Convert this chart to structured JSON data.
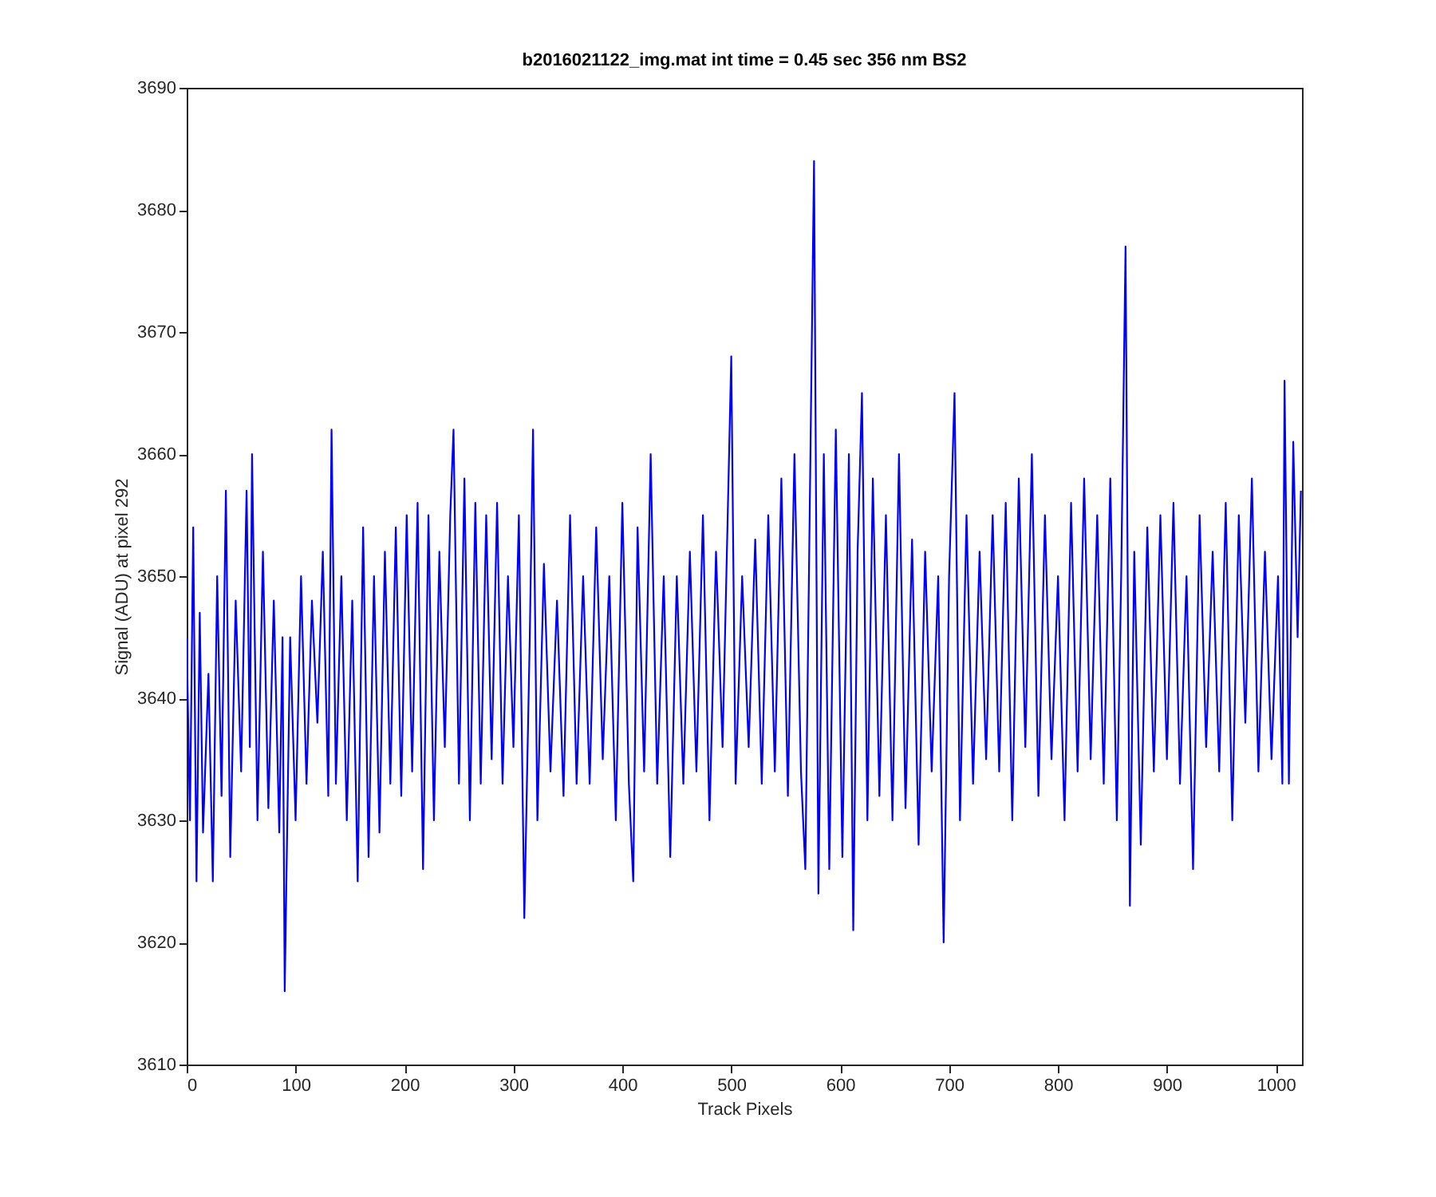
{
  "chart_data": {
    "type": "line",
    "title": "b2016021122_img.mat int time = 0.45 sec  356 nm BS2",
    "xlabel": "Track Pixels",
    "ylabel": "Signal (ADU) at pixel 292",
    "xlim": [
      0,
      1024
    ],
    "xticks": [
      0,
      100,
      200,
      300,
      400,
      500,
      600,
      700,
      800,
      900,
      1000
    ],
    "ylim": [
      3610,
      3690
    ],
    "yticks": [
      3610,
      3620,
      3630,
      3640,
      3650,
      3660,
      3670,
      3680,
      3690
    ],
    "grid": false,
    "marker": "none",
    "series": [
      {
        "color": "#0000ff",
        "x": [
          0,
          3,
          6,
          9,
          12,
          15,
          20,
          24,
          28,
          32,
          36,
          40,
          45,
          50,
          55,
          58,
          60,
          65,
          70,
          75,
          80,
          85,
          88,
          90,
          95,
          100,
          105,
          110,
          115,
          120,
          125,
          130,
          133,
          137,
          142,
          147,
          152,
          157,
          162,
          167,
          172,
          177,
          182,
          187,
          192,
          197,
          202,
          207,
          212,
          217,
          222,
          227,
          232,
          237,
          242,
          245,
          250,
          255,
          260,
          265,
          270,
          275,
          280,
          285,
          290,
          295,
          300,
          305,
          310,
          315,
          318,
          322,
          328,
          334,
          340,
          346,
          352,
          358,
          364,
          370,
          376,
          382,
          388,
          394,
          400,
          406,
          410,
          414,
          420,
          426,
          432,
          438,
          444,
          450,
          456,
          462,
          468,
          474,
          480,
          486,
          492,
          500,
          504,
          510,
          516,
          522,
          528,
          534,
          540,
          546,
          552,
          558,
          564,
          568,
          572,
          576,
          580,
          585,
          590,
          596,
          602,
          608,
          612,
          616,
          620,
          625,
          630,
          636,
          642,
          648,
          654,
          660,
          666,
          672,
          678,
          684,
          690,
          695,
          700,
          705,
          710,
          716,
          722,
          728,
          734,
          740,
          746,
          752,
          758,
          764,
          770,
          776,
          782,
          788,
          794,
          800,
          806,
          812,
          818,
          824,
          830,
          836,
          842,
          848,
          854,
          858,
          862,
          866,
          870,
          876,
          882,
          888,
          894,
          900,
          906,
          912,
          918,
          924,
          930,
          936,
          942,
          948,
          954,
          960,
          966,
          972,
          978,
          984,
          990,
          996,
          1002,
          1006,
          1008,
          1012,
          1016,
          1020,
          1023
        ],
        "values": [
          3645,
          3630,
          3654,
          3625,
          3647,
          3629,
          3642,
          3625,
          3650,
          3632,
          3657,
          3627,
          3648,
          3634,
          3657,
          3636,
          3660,
          3630,
          3652,
          3631,
          3648,
          3629,
          3645,
          3616,
          3645,
          3630,
          3650,
          3633,
          3648,
          3638,
          3652,
          3632,
          3662,
          3633,
          3650,
          3630,
          3648,
          3625,
          3654,
          3627,
          3650,
          3629,
          3652,
          3633,
          3654,
          3632,
          3655,
          3634,
          3656,
          3626,
          3655,
          3630,
          3652,
          3636,
          3655,
          3662,
          3633,
          3658,
          3630,
          3656,
          3633,
          3655,
          3635,
          3656,
          3633,
          3650,
          3636,
          3655,
          3622,
          3645,
          3662,
          3630,
          3651,
          3634,
          3648,
          3632,
          3655,
          3633,
          3650,
          3633,
          3654,
          3635,
          3650,
          3630,
          3656,
          3633,
          3625,
          3654,
          3634,
          3660,
          3633,
          3650,
          3627,
          3650,
          3633,
          3652,
          3634,
          3655,
          3630,
          3652,
          3636,
          3668,
          3633,
          3650,
          3636,
          3653,
          3633,
          3655,
          3634,
          3658,
          3632,
          3660,
          3634,
          3626,
          3655,
          3684,
          3624,
          3660,
          3626,
          3662,
          3627,
          3660,
          3621,
          3652,
          3665,
          3630,
          3658,
          3632,
          3655,
          3630,
          3660,
          3631,
          3653,
          3628,
          3652,
          3634,
          3650,
          3620,
          3650,
          3665,
          3630,
          3655,
          3633,
          3652,
          3635,
          3655,
          3634,
          3656,
          3630,
          3658,
          3636,
          3660,
          3632,
          3655,
          3635,
          3650,
          3630,
          3656,
          3634,
          3658,
          3635,
          3655,
          3633,
          3658,
          3630,
          3650,
          3677,
          3623,
          3652,
          3628,
          3654,
          3634,
          3655,
          3635,
          3656,
          3633,
          3650,
          3626,
          3655,
          3636,
          3652,
          3634,
          3656,
          3630,
          3655,
          3638,
          3658,
          3634,
          3652,
          3635,
          3650,
          3633,
          3666,
          3633,
          3661,
          3645,
          3657
        ]
      }
    ]
  }
}
